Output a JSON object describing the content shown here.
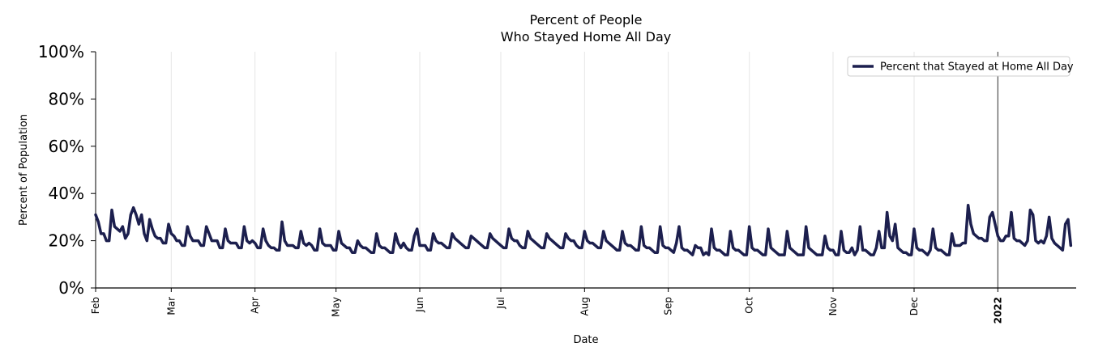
{
  "chart_data": {
    "type": "line",
    "title": "Percent of People",
    "subtitle": "Who Stayed Home All Day",
    "xlabel": "Date",
    "ylabel": "Percent of Population",
    "ylim": [
      0,
      100
    ],
    "yticks": [
      0,
      20,
      40,
      60,
      80,
      100
    ],
    "ytick_labels": [
      "0%",
      "20%",
      "40%",
      "60%",
      "80%",
      "100%"
    ],
    "xlim_days": [
      0,
      363
    ],
    "x_ticks": [
      {
        "label": "Feb",
        "day": 0,
        "bold": false
      },
      {
        "label": "Mar",
        "day": 28,
        "bold": false
      },
      {
        "label": "Apr",
        "day": 59,
        "bold": false
      },
      {
        "label": "May",
        "day": 89,
        "bold": false
      },
      {
        "label": "Jun",
        "day": 120,
        "bold": false
      },
      {
        "label": "Jul",
        "day": 150,
        "bold": false
      },
      {
        "label": "Aug",
        "day": 181,
        "bold": false
      },
      {
        "label": "Sep",
        "day": 212,
        "bold": false
      },
      {
        "label": "Oct",
        "day": 242,
        "bold": false
      },
      {
        "label": "Nov",
        "day": 273,
        "bold": false
      },
      {
        "label": "Dec",
        "day": 303,
        "bold": false
      },
      {
        "label": "2022",
        "day": 334,
        "bold": true
      }
    ],
    "vertical_marker_day": 334,
    "grid": "vertical",
    "legend_position": "top-right",
    "series": [
      {
        "name": "Percent that Stayed at Home All Day",
        "color": "#1c1f4e",
        "start_day": 0,
        "values": [
          31,
          28,
          23,
          23,
          20,
          20,
          33,
          26,
          25,
          24,
          26,
          21,
          23,
          31,
          34,
          31,
          27,
          31,
          23,
          20,
          29,
          25,
          22,
          21,
          21,
          19,
          19,
          27,
          23,
          22,
          20,
          20,
          18,
          18,
          26,
          22,
          20,
          20,
          20,
          18,
          18,
          26,
          23,
          20,
          20,
          20,
          17,
          17,
          25,
          20,
          19,
          19,
          19,
          17,
          17,
          26,
          20,
          19,
          20,
          19,
          17,
          17,
          25,
          20,
          18,
          17,
          17,
          16,
          16,
          28,
          20,
          18,
          18,
          18,
          17,
          17,
          24,
          19,
          18,
          19,
          18,
          16,
          16,
          25,
          19,
          18,
          18,
          18,
          16,
          16,
          24,
          19,
          18,
          17,
          17,
          15,
          15,
          20,
          18,
          17,
          17,
          16,
          15,
          15,
          23,
          18,
          17,
          17,
          16,
          15,
          15,
          23,
          19,
          17,
          19,
          17,
          16,
          16,
          22,
          25,
          18,
          18,
          18,
          16,
          16,
          23,
          20,
          19,
          19,
          18,
          17,
          17,
          23,
          21,
          20,
          19,
          18,
          17,
          17,
          22,
          21,
          20,
          19,
          18,
          17,
          17,
          23,
          21,
          20,
          19,
          18,
          17,
          17,
          25,
          21,
          20,
          20,
          18,
          17,
          17,
          24,
          21,
          20,
          19,
          18,
          17,
          17,
          23,
          21,
          20,
          19,
          18,
          17,
          17,
          23,
          21,
          20,
          20,
          18,
          17,
          17,
          24,
          20,
          19,
          19,
          18,
          17,
          17,
          24,
          20,
          19,
          18,
          17,
          16,
          16,
          24,
          19,
          18,
          18,
          17,
          16,
          16,
          26,
          18,
          17,
          17,
          16,
          15,
          15,
          26,
          18,
          17,
          17,
          16,
          15,
          19,
          26,
          17,
          16,
          16,
          15,
          14,
          18,
          17,
          17,
          14,
          15,
          14,
          25,
          17,
          16,
          16,
          15,
          14,
          14,
          24,
          17,
          16,
          16,
          15,
          14,
          14,
          26,
          17,
          16,
          16,
          15,
          14,
          14,
          25,
          17,
          16,
          15,
          14,
          14,
          14,
          24,
          17,
          16,
          15,
          14,
          14,
          14,
          26,
          17,
          16,
          15,
          14,
          14,
          14,
          22,
          17,
          16,
          16,
          14,
          14,
          24,
          16,
          15,
          15,
          17,
          14,
          16,
          26,
          16,
          16,
          15,
          14,
          14,
          17,
          24,
          17,
          17,
          32,
          22,
          20,
          27,
          17,
          16,
          15,
          15,
          14,
          14,
          25,
          17,
          16,
          16,
          15,
          14,
          16,
          25,
          17,
          16,
          16,
          15,
          14,
          14,
          23,
          18,
          18,
          18,
          19,
          19,
          35,
          27,
          23,
          22,
          21,
          21,
          20,
          20,
          30,
          32,
          27,
          22,
          20,
          20,
          22,
          22,
          32,
          21,
          20,
          20,
          19,
          18,
          20,
          33,
          31,
          20,
          19,
          20,
          19,
          22,
          30,
          21,
          19,
          18,
          17,
          16,
          27,
          29,
          18
        ]
      }
    ]
  }
}
